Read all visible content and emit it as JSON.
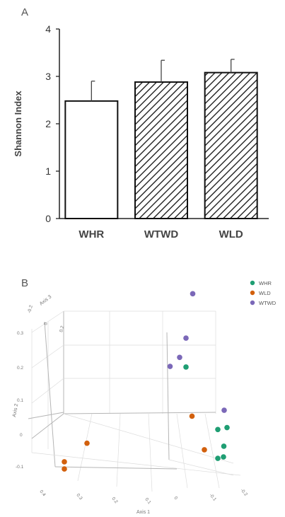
{
  "panels": {
    "a": "A",
    "b": "B"
  },
  "chart_data": [
    {
      "type": "bar",
      "ylabel": "Shannon Index",
      "ylim": [
        0,
        4
      ],
      "yticks": [
        "0",
        "1",
        "2",
        "3",
        "4"
      ],
      "categories": [
        "WHR",
        "WTWD",
        "WLD"
      ],
      "values": [
        2.48,
        2.88,
        3.08
      ],
      "error_upper": [
        0.42,
        0.46,
        0.28
      ],
      "fills": [
        "none",
        "hatch",
        "hatch"
      ],
      "grid": false
    },
    {
      "type": "scatter",
      "projection": "3d",
      "axis_labels": [
        "Axis 1",
        "Axis 2",
        "Axis 3"
      ],
      "axis1_ticks": [
        "-0.2",
        "-0.1",
        "0",
        "0.1",
        "0.2",
        "0.3",
        "0.4"
      ],
      "axis2_ticks": [
        "-0.1",
        "0",
        "0.1",
        "0.2",
        "0.3"
      ],
      "axis3_ticks": [
        "-0.2",
        "0",
        "0.2"
      ],
      "legend_position": "top-right",
      "series": [
        {
          "name": "WHR",
          "color": "#1f9e73",
          "points": [
            [
              -0.02,
              0.14,
              0.05
            ],
            [
              -0.12,
              -0.05,
              0.05
            ],
            [
              -0.13,
              -0.1,
              0.0
            ],
            [
              -0.14,
              -0.05,
              0.0
            ],
            [
              -0.12,
              -0.13,
              -0.05
            ],
            [
              -0.12,
              -0.13,
              0.05
            ]
          ]
        },
        {
          "name": "WLD",
          "color": "#d2600d",
          "points": [
            [
              -0.03,
              0.0,
              0.0
            ],
            [
              0.3,
              -0.02,
              0.0
            ],
            [
              0.38,
              -0.08,
              -0.05
            ],
            [
              0.38,
              -0.06,
              -0.05
            ],
            [
              -0.06,
              -0.1,
              -0.05
            ]
          ]
        },
        {
          "name": "WTWD",
          "color": "#7b68b8",
          "points": [
            [
              -0.05,
              0.34,
              0.1
            ],
            [
              -0.02,
              0.22,
              0.05
            ],
            [
              0.0,
              0.17,
              0.05
            ],
            [
              0.03,
              0.15,
              0.05
            ],
            [
              -0.14,
              0.0,
              0.05
            ]
          ]
        }
      ]
    }
  ]
}
